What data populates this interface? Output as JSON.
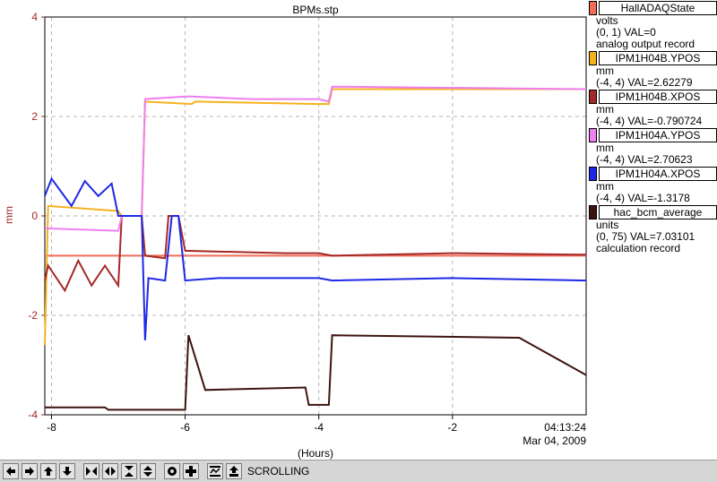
{
  "chart_data": {
    "type": "line",
    "title": "BPMs.stp",
    "xlabel": "(Hours)",
    "ylabel": "mm",
    "xlim": [
      -8.1,
      0
    ],
    "ylim": [
      -4,
      4
    ],
    "x_ticks": [
      -8,
      -6,
      -4,
      -2
    ],
    "y_ticks": [
      -4,
      -2,
      0,
      2,
      4
    ],
    "x_tick_labels": [
      "-8",
      "-6",
      "-4",
      "-2"
    ],
    "y_tick_labels": [
      "-4",
      "-2",
      "0",
      "2",
      "4"
    ],
    "time_label": "04:13:24",
    "date_label": "Mar 04, 2009",
    "grid": true,
    "series": [
      {
        "name": "HallADAQState",
        "color": "#f06e5a",
        "range": [
          0,
          1
        ],
        "units": "volts",
        "value": "0",
        "points": [
          [
            -8.1,
            -0.8
          ],
          [
            0,
            -0.8
          ]
        ]
      },
      {
        "name": "IPM1H04B.YPOS",
        "color": "#f5b21e",
        "range": [
          -4,
          4
        ],
        "units": "mm",
        "value": "2.62279",
        "points": [
          [
            -8.1,
            -2.6
          ],
          [
            -8.05,
            0.2
          ],
          [
            -7.0,
            0.1
          ],
          [
            -6.95,
            0.0
          ],
          [
            -6.65,
            0.0
          ],
          [
            -6.6,
            2.3
          ],
          [
            -5.9,
            2.25
          ],
          [
            -5.85,
            2.3
          ],
          [
            -4.0,
            2.25
          ],
          [
            -3.85,
            2.25
          ],
          [
            -3.8,
            2.55
          ],
          [
            0,
            2.55
          ]
        ]
      },
      {
        "name": "IPM1H04B.XPOS",
        "color": "#a52828",
        "range": [
          -4,
          4
        ],
        "units": "mm",
        "value": "-0.790724",
        "points": [
          [
            -8.1,
            -1.3
          ],
          [
            -8.05,
            -1.0
          ],
          [
            -7.8,
            -1.5
          ],
          [
            -7.6,
            -0.9
          ],
          [
            -7.4,
            -1.4
          ],
          [
            -7.2,
            -1.0
          ],
          [
            -7.0,
            -1.4
          ],
          [
            -6.95,
            0.0
          ],
          [
            -6.65,
            0.0
          ],
          [
            -6.6,
            -0.8
          ],
          [
            -6.3,
            -0.85
          ],
          [
            -6.25,
            0.0
          ],
          [
            -6.1,
            0.0
          ],
          [
            -6.0,
            -0.7
          ],
          [
            -4.5,
            -0.75
          ],
          [
            -4.0,
            -0.75
          ],
          [
            -3.8,
            -0.8
          ],
          [
            -2.0,
            -0.75
          ],
          [
            0,
            -0.78
          ]
        ]
      },
      {
        "name": "IPM1H04A.YPOS",
        "color": "#ee7fee",
        "range": [
          -4,
          4
        ],
        "units": "mm",
        "value": "2.70623",
        "points": [
          [
            -8.1,
            -0.25
          ],
          [
            -7.0,
            -0.3
          ],
          [
            -6.95,
            0.0
          ],
          [
            -6.65,
            0.0
          ],
          [
            -6.6,
            2.35
          ],
          [
            -6.0,
            2.4
          ],
          [
            -5.9,
            2.4
          ],
          [
            -5.0,
            2.35
          ],
          [
            -4.0,
            2.35
          ],
          [
            -3.85,
            2.3
          ],
          [
            -3.8,
            2.6
          ],
          [
            0,
            2.55
          ]
        ]
      },
      {
        "name": "IPM1H04A.XPOS",
        "color": "#1e28e6",
        "range": [
          -4,
          4
        ],
        "units": "mm",
        "value": "-1.3178",
        "points": [
          [
            -8.1,
            0.4
          ],
          [
            -8.0,
            0.75
          ],
          [
            -7.7,
            0.2
          ],
          [
            -7.5,
            0.7
          ],
          [
            -7.3,
            0.4
          ],
          [
            -7.1,
            0.65
          ],
          [
            -7.0,
            0.0
          ],
          [
            -6.65,
            0.0
          ],
          [
            -6.6,
            -2.5
          ],
          [
            -6.55,
            -1.25
          ],
          [
            -6.3,
            -1.3
          ],
          [
            -6.2,
            0.0
          ],
          [
            -6.1,
            0.0
          ],
          [
            -6.0,
            -1.3
          ],
          [
            -5.5,
            -1.25
          ],
          [
            -4.0,
            -1.25
          ],
          [
            -3.8,
            -1.3
          ],
          [
            -2.0,
            -1.25
          ],
          [
            0,
            -1.3
          ]
        ]
      },
      {
        "name": "hac_bcm_average",
        "color": "#3c140f",
        "range": [
          0,
          75
        ],
        "units": "units",
        "value": "7.03101",
        "points": [
          [
            -8.1,
            -3.85
          ],
          [
            -7.2,
            -3.85
          ],
          [
            -7.15,
            -3.9
          ],
          [
            -6.0,
            -3.9
          ],
          [
            -5.95,
            -2.4
          ],
          [
            -5.7,
            -3.5
          ],
          [
            -4.2,
            -3.45
          ],
          [
            -4.15,
            -3.8
          ],
          [
            -3.85,
            -3.8
          ],
          [
            -3.8,
            -2.4
          ],
          [
            -1.0,
            -2.45
          ],
          [
            0,
            -3.2
          ]
        ]
      }
    ]
  },
  "legend": [
    {
      "name": "HallADAQState",
      "color": "#f06e5a",
      "units": "volts",
      "readout": "(0, 1) VAL=0",
      "type": "analog output record"
    },
    {
      "name": "IPM1H04B.YPOS",
      "color": "#f5b21e",
      "units": "mm",
      "readout": "(-4, 4) VAL=2.62279",
      "type": ""
    },
    {
      "name": "IPM1H04B.XPOS",
      "color": "#a52828",
      "units": "mm",
      "readout": "(-4, 4) VAL=-0.790724",
      "type": ""
    },
    {
      "name": "IPM1H04A.YPOS",
      "color": "#ee7fee",
      "units": "mm",
      "readout": "(-4, 4) VAL=2.70623",
      "type": ""
    },
    {
      "name": "IPM1H04A.XPOS",
      "color": "#1e28e6",
      "units": "mm",
      "readout": "(-4, 4) VAL=-1.3178",
      "type": ""
    },
    {
      "name": "hac_bcm_average",
      "color": "#3c140f",
      "units": "units",
      "readout": "(0, 75) VAL=7.03101",
      "type": "calculation record"
    }
  ],
  "toolbar": {
    "status": "SCROLLING",
    "buttons": [
      "arrow-left-icon",
      "arrow-right-icon",
      "arrow-up-icon",
      "arrow-down-icon",
      "zoom-x-in-icon",
      "zoom-x-out-icon",
      "zoom-y-in-icon",
      "zoom-y-out-icon",
      "record-icon",
      "add-icon",
      "auto-scale-icon",
      "print-icon"
    ]
  }
}
